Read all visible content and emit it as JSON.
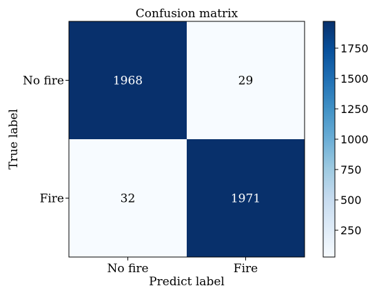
{
  "chart_data": {
    "type": "heatmap",
    "title": "Confusion matrix",
    "xlabel": "Predict label",
    "ylabel": "True label",
    "x_categories": [
      "No fire",
      "Fire"
    ],
    "y_categories": [
      "No fire",
      "Fire"
    ],
    "values": [
      [
        1968,
        29
      ],
      [
        32,
        1971
      ]
    ],
    "value_labels": [
      [
        "1968",
        "29"
      ],
      [
        "32",
        "1971"
      ]
    ],
    "colormap": "Blues",
    "colors": {
      "low": "#f7fbff",
      "high": "#08306b"
    },
    "colorbar": {
      "min": 29,
      "max": 1971,
      "ticks": [
        250,
        500,
        750,
        1000,
        1250,
        1500,
        1750
      ],
      "tick_labels": [
        "250",
        "500",
        "750",
        "1000",
        "1250",
        "1500",
        "1750"
      ]
    }
  }
}
